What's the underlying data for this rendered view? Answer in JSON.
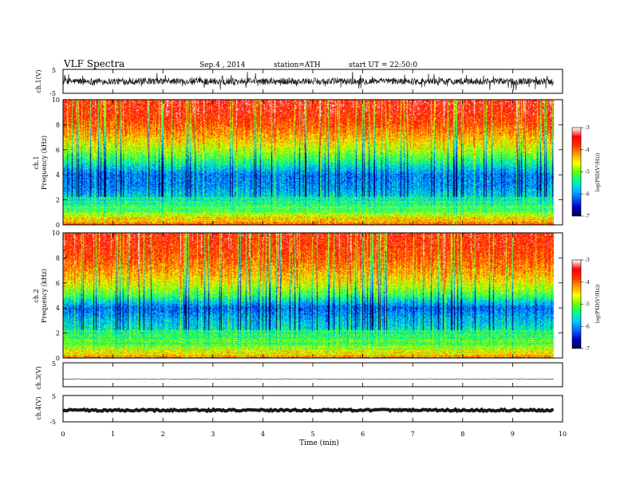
{
  "header": {
    "title": "VLF  Spectra",
    "date": "Sep.4 , 2014",
    "station": "station=ATH",
    "start": "start  UT =  22:50:0"
  },
  "colors": {
    "waveform": "#1a1a1a",
    "frame": "#000000",
    "colormap": [
      "#000050",
      "#0000c8",
      "#0064ff",
      "#00c8ff",
      "#00ff96",
      "#64ff00",
      "#ffff00",
      "#ffa000",
      "#ff3000",
      "#ff0000",
      "#ffffff"
    ]
  },
  "chart_data": [
    {
      "type": "line",
      "name": "ch1-waveform",
      "ylabel": "ch.1(V)",
      "ylim": [
        -5,
        5
      ],
      "yticks": [
        "5",
        "-5"
      ],
      "xlim": [
        0,
        10
      ],
      "data_end_min": 9.82,
      "mean": 0.0,
      "amplitude": 1.4
    },
    {
      "type": "heatmap",
      "name": "ch1-spectrogram",
      "ylabel_top": "ch.1",
      "ylabel": "Frequency (kHz)",
      "ylim": [
        0,
        10
      ],
      "yticks": [
        "0",
        "2",
        "4",
        "6",
        "8",
        "10"
      ],
      "xlim": [
        0,
        10
      ],
      "data_end_min": 9.82,
      "colorbar": {
        "label": "log(PSD(V²/Hz))",
        "range": [
          -7,
          -3
        ],
        "ticks": [
          "-3",
          "-4",
          "-5",
          "-6",
          "-7"
        ]
      },
      "profile_logpsd": [
        {
          "f_khz": 0.0,
          "v": -4.2
        },
        {
          "f_khz": 0.5,
          "v": -4.6
        },
        {
          "f_khz": 1.0,
          "v": -5.2
        },
        {
          "f_khz": 2.0,
          "v": -5.6
        },
        {
          "f_khz": 3.0,
          "v": -6.0
        },
        {
          "f_khz": 4.0,
          "v": -6.1
        },
        {
          "f_khz": 5.0,
          "v": -5.4
        },
        {
          "f_khz": 6.0,
          "v": -4.8
        },
        {
          "f_khz": 7.0,
          "v": -4.3
        },
        {
          "f_khz": 8.0,
          "v": -3.9
        },
        {
          "f_khz": 9.0,
          "v": -3.6
        },
        {
          "f_khz": 10.0,
          "v": -3.5
        }
      ]
    },
    {
      "type": "heatmap",
      "name": "ch2-spectrogram",
      "ylabel_top": "ch.2",
      "ylabel": "Frequency (kHz)",
      "ylim": [
        0,
        10
      ],
      "yticks": [
        "0",
        "2",
        "4",
        "6",
        "8",
        "10"
      ],
      "xlim": [
        0,
        10
      ],
      "data_end_min": 9.82,
      "colorbar": {
        "label": "log(PSD(V²/Hz))",
        "range": [
          -7,
          -3
        ],
        "ticks": [
          "-3",
          "-4",
          "-5",
          "-6",
          "-7"
        ]
      },
      "profile_logpsd": [
        {
          "f_khz": 0.0,
          "v": -4.3
        },
        {
          "f_khz": 0.5,
          "v": -4.8
        },
        {
          "f_khz": 1.0,
          "v": -5.3
        },
        {
          "f_khz": 2.0,
          "v": -5.5
        },
        {
          "f_khz": 3.0,
          "v": -5.8
        },
        {
          "f_khz": 4.0,
          "v": -6.2
        },
        {
          "f_khz": 5.0,
          "v": -5.2
        },
        {
          "f_khz": 6.0,
          "v": -4.6
        },
        {
          "f_khz": 7.0,
          "v": -4.2
        },
        {
          "f_khz": 8.0,
          "v": -3.9
        },
        {
          "f_khz": 9.0,
          "v": -3.7
        },
        {
          "f_khz": 10.0,
          "v": -3.6
        }
      ]
    },
    {
      "type": "line",
      "name": "ch3-trace",
      "ylabel": "ch.3(V)",
      "ylim": [
        -5,
        5
      ],
      "yticks": [
        "5"
      ],
      "xlim": [
        0,
        10
      ],
      "data_end_min": 9.82,
      "mean": -1.8,
      "amplitude": 0.15
    },
    {
      "type": "line",
      "name": "ch4-trace",
      "ylabel": "ch.4(V)",
      "ylim": [
        -5,
        5
      ],
      "yticks": [
        "5",
        "-5"
      ],
      "xlim": [
        0,
        10
      ],
      "data_end_min": 9.82,
      "mean": -0.6,
      "amplitude": 0.35
    }
  ],
  "xaxis": {
    "label": "Time (min)",
    "ticks": [
      "0",
      "1",
      "2",
      "3",
      "4",
      "5",
      "6",
      "7",
      "8",
      "9",
      "10"
    ]
  }
}
